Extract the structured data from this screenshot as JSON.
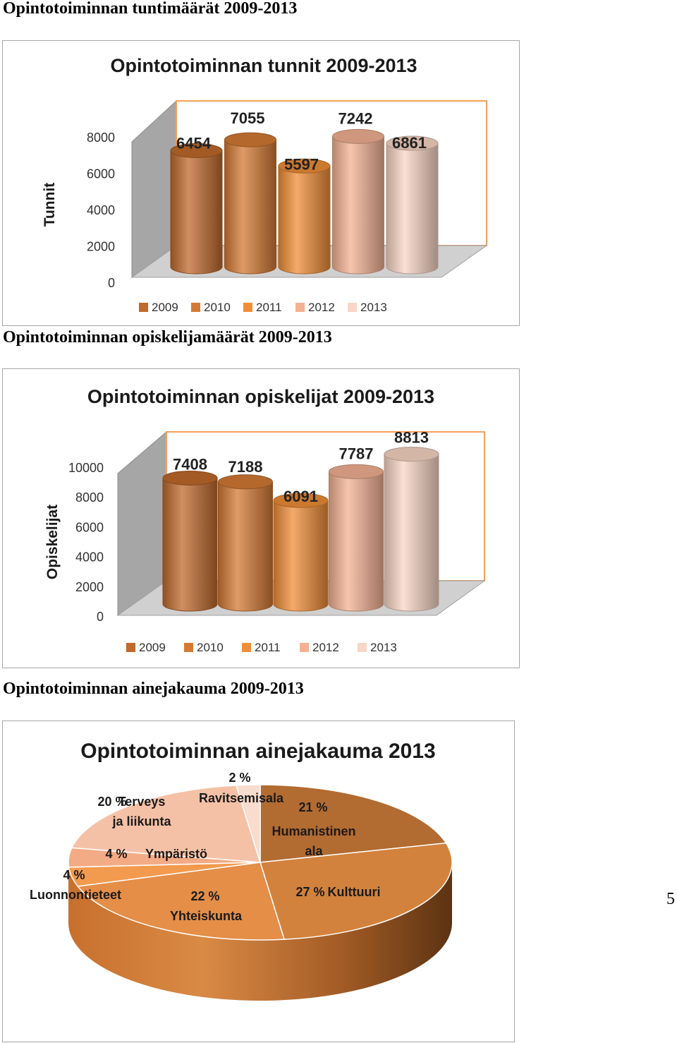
{
  "page": {
    "page_number": "5"
  },
  "sections": [
    {
      "heading": "Opintotoiminnan tuntimäärät 2009-2013"
    },
    {
      "heading": "Opintotoiminnan opiskelijamäärät 2009-2013"
    },
    {
      "heading": "Opintotoiminnan ainejakauma 2009-2013"
    }
  ],
  "colors": {
    "y2009": "#c06a2c",
    "y2010": "#d47a34",
    "y2011": "#f08e38",
    "y2012": "#f4b293",
    "y2013": "#f9d6c5",
    "wall_gray": "#a6a6a6",
    "frame_orange": "#f4a15a"
  },
  "chart_data": [
    {
      "type": "bar",
      "title": "Opintotoiminnan tunnit 2009-2013",
      "ylabel": "Tunnit",
      "xlabel": "",
      "categories": [
        "2009",
        "2010",
        "2011",
        "2012",
        "2013"
      ],
      "values": [
        6454,
        7055,
        5597,
        7242,
        6861
      ],
      "value_labels": [
        "6454",
        "7055",
        "5597",
        "7242",
        "6861"
      ],
      "ylim": [
        0,
        8000
      ],
      "yticks": [
        "0",
        "2000",
        "4000",
        "6000",
        "8000"
      ],
      "legend": [
        "2009",
        "2010",
        "2011",
        "2012",
        "2013"
      ],
      "legend_position": "bottom"
    },
    {
      "type": "bar",
      "title": "Opintotoiminnan opiskelijat 2009-2013",
      "ylabel": "Opiskelijat",
      "xlabel": "",
      "categories": [
        "2009",
        "2010",
        "2011",
        "2012",
        "2013"
      ],
      "values": [
        7408,
        7188,
        6091,
        7787,
        8813
      ],
      "value_labels": [
        "7408",
        "7188",
        "6091",
        "7787",
        "8813"
      ],
      "ylim": [
        0,
        10000
      ],
      "yticks": [
        "0",
        "2000",
        "4000",
        "6000",
        "8000",
        "10000"
      ],
      "legend": [
        "2009",
        "2010",
        "2011",
        "2012",
        "2013"
      ],
      "legend_position": "bottom"
    },
    {
      "type": "pie",
      "title": "Opintotoiminnan ainejakauma 2013",
      "slices": [
        {
          "pct_label": "21 %",
          "name": "Humanistinen\nala",
          "value": 21,
          "color": "#b26b31"
        },
        {
          "pct_label": "27 %",
          "name": "Kulttuuri",
          "value": 27,
          "color": "#d2823c"
        },
        {
          "pct_label": "22 %",
          "name": "Yhteiskunta",
          "value": 22,
          "color": "#e48e48"
        },
        {
          "pct_label": "4 %",
          "name": "Luonnontieteet",
          "value": 4,
          "color": "#f29a4e"
        },
        {
          "pct_label": "4 %",
          "name": "Ympäristö",
          "value": 4,
          "color": "#f3ab85"
        },
        {
          "pct_label": "20 %",
          "name": "Terveys\nja liikunta",
          "value": 20,
          "color": "#f5c1a6"
        },
        {
          "pct_label": "2 %",
          "name": "Ravitsemisala",
          "value": 2,
          "color": "#f9dccd"
        }
      ]
    }
  ]
}
